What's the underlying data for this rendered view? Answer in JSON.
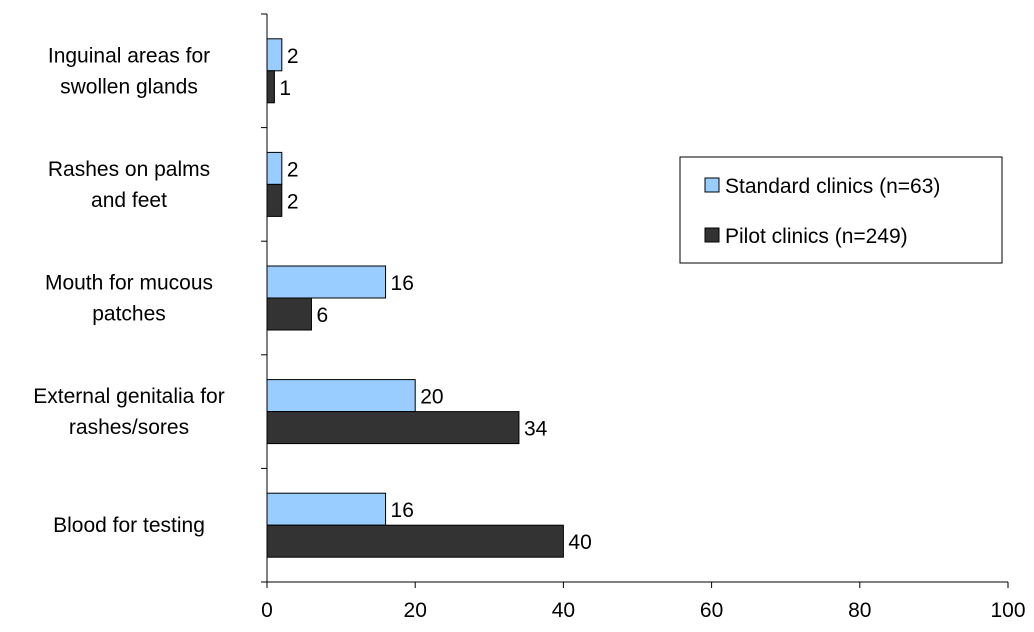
{
  "chart_data": {
    "type": "bar",
    "orientation": "horizontal",
    "categories": [
      [
        "Inguinal areas for",
        "swollen glands"
      ],
      [
        "Rashes on palms",
        "and feet"
      ],
      [
        "Mouth for mucous",
        "patches"
      ],
      [
        "External genitalia for",
        "rashes/sores"
      ],
      [
        "Blood for testing"
      ]
    ],
    "series": [
      {
        "name": "Standard clinics (n=63)",
        "color": "#99ccff",
        "values": [
          2,
          2,
          16,
          20,
          16
        ]
      },
      {
        "name": "Pilot clinics (n=249)",
        "color": "#333333",
        "values": [
          1,
          2,
          6,
          34,
          40
        ]
      }
    ],
    "xlim": [
      0,
      100
    ],
    "xticks": [
      0,
      20,
      40,
      60,
      80,
      100
    ],
    "grid": false,
    "legend_position": "right"
  }
}
